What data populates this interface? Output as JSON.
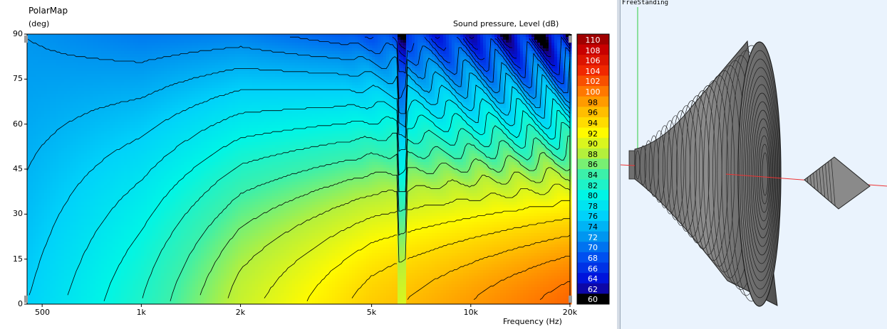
{
  "chart_data": {
    "type": "heatmap",
    "title": "PolarMap",
    "ylabel": "(deg)",
    "xlabel": "Frequency  (Hz)",
    "colorbar_label": "Sound pressure, Level  (dB)",
    "x_scale": "log",
    "xlim": [
      450,
      20000
    ],
    "ylim": [
      0,
      90
    ],
    "x_ticks": [
      "500",
      "1k",
      "2k",
      "5k",
      "10k",
      "20k"
    ],
    "x_tick_values": [
      500,
      1000,
      2000,
      5000,
      10000,
      20000
    ],
    "y_ticks": [
      "0",
      "15",
      "30",
      "45",
      "60",
      "75",
      "90"
    ],
    "y_tick_values": [
      0,
      15,
      30,
      45,
      60,
      75,
      90
    ],
    "colorbar_levels": [
      "110",
      "108",
      "106",
      "104",
      "102",
      "100",
      "98",
      "96",
      "94",
      "92",
      "90",
      "88",
      "86",
      "84",
      "82",
      "80",
      "78",
      "76",
      "74",
      "72",
      "70",
      "68",
      "66",
      "64",
      "62",
      "60"
    ],
    "colorbar_range": [
      60,
      111
    ],
    "contour_step": 2,
    "level_model": {
      "frequency_hz": [
        450,
        1000,
        2000,
        5000,
        10000,
        20000
      ],
      "on_axis_level_db": [
        76,
        82,
        89,
        95,
        98,
        101
      ],
      "comment_free": true
    }
  },
  "right_view": {
    "title": "FreeStanding"
  }
}
